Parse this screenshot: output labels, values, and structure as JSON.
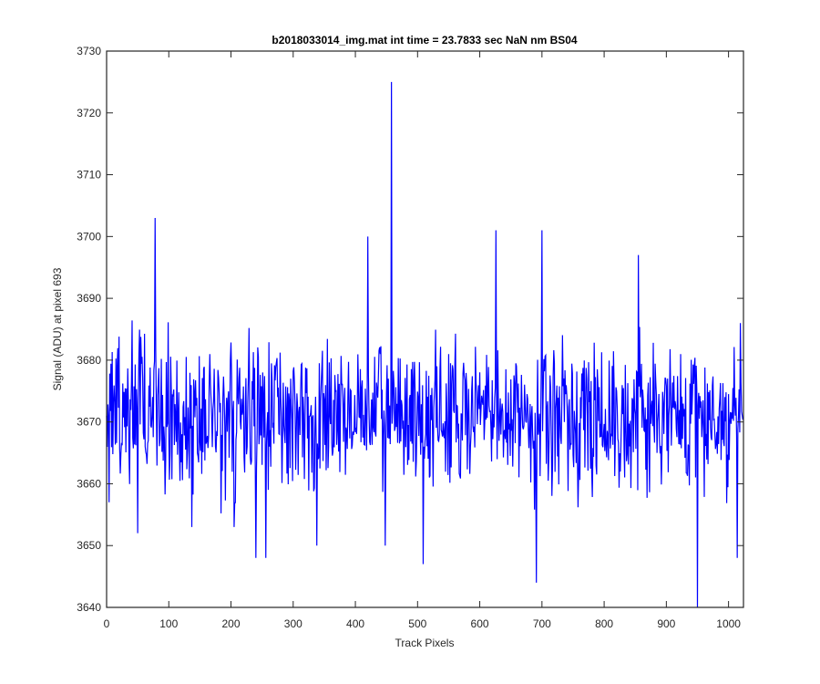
{
  "chart_data": {
    "type": "line",
    "title": "b2018033014_img.mat int time = 23.7833 sec  NaN nm BS04",
    "xlabel": "Track Pixels",
    "ylabel": "Signal (ADU) at pixel 693",
    "xlim": [
      0,
      1024
    ],
    "ylim": [
      3640,
      3730
    ],
    "xticks": [
      0,
      100,
      200,
      300,
      400,
      500,
      600,
      700,
      800,
      900,
      1000
    ],
    "yticks": [
      3640,
      3650,
      3660,
      3670,
      3680,
      3690,
      3700,
      3710,
      3720,
      3730
    ],
    "xtick_labels": [
      "0",
      "100",
      "200",
      "300",
      "400",
      "500",
      "600",
      "700",
      "800",
      "900",
      "1000"
    ],
    "ytick_labels": [
      "3640",
      "3650",
      "3660",
      "3670",
      "3680",
      "3690",
      "3700",
      "3710",
      "3720",
      "3730"
    ],
    "grid": false,
    "series": [
      {
        "color": "#0000ff",
        "n_points": 1024,
        "baseline": 3671,
        "noise_range": [
          3652,
          3690
        ],
        "x": [
          0,
          4,
          50,
          78,
          137,
          205,
          240,
          256,
          338,
          420,
          448,
          458,
          509,
          626,
          691,
          700,
          855,
          950,
          1014,
          1019
        ],
        "y": [
          3671,
          3657,
          3652,
          3703,
          3653,
          3653,
          3648,
          3648,
          3650,
          3700,
          3650,
          3725,
          3647,
          3701,
          3644,
          3701,
          3697,
          3640,
          3648,
          3686
        ]
      }
    ]
  }
}
